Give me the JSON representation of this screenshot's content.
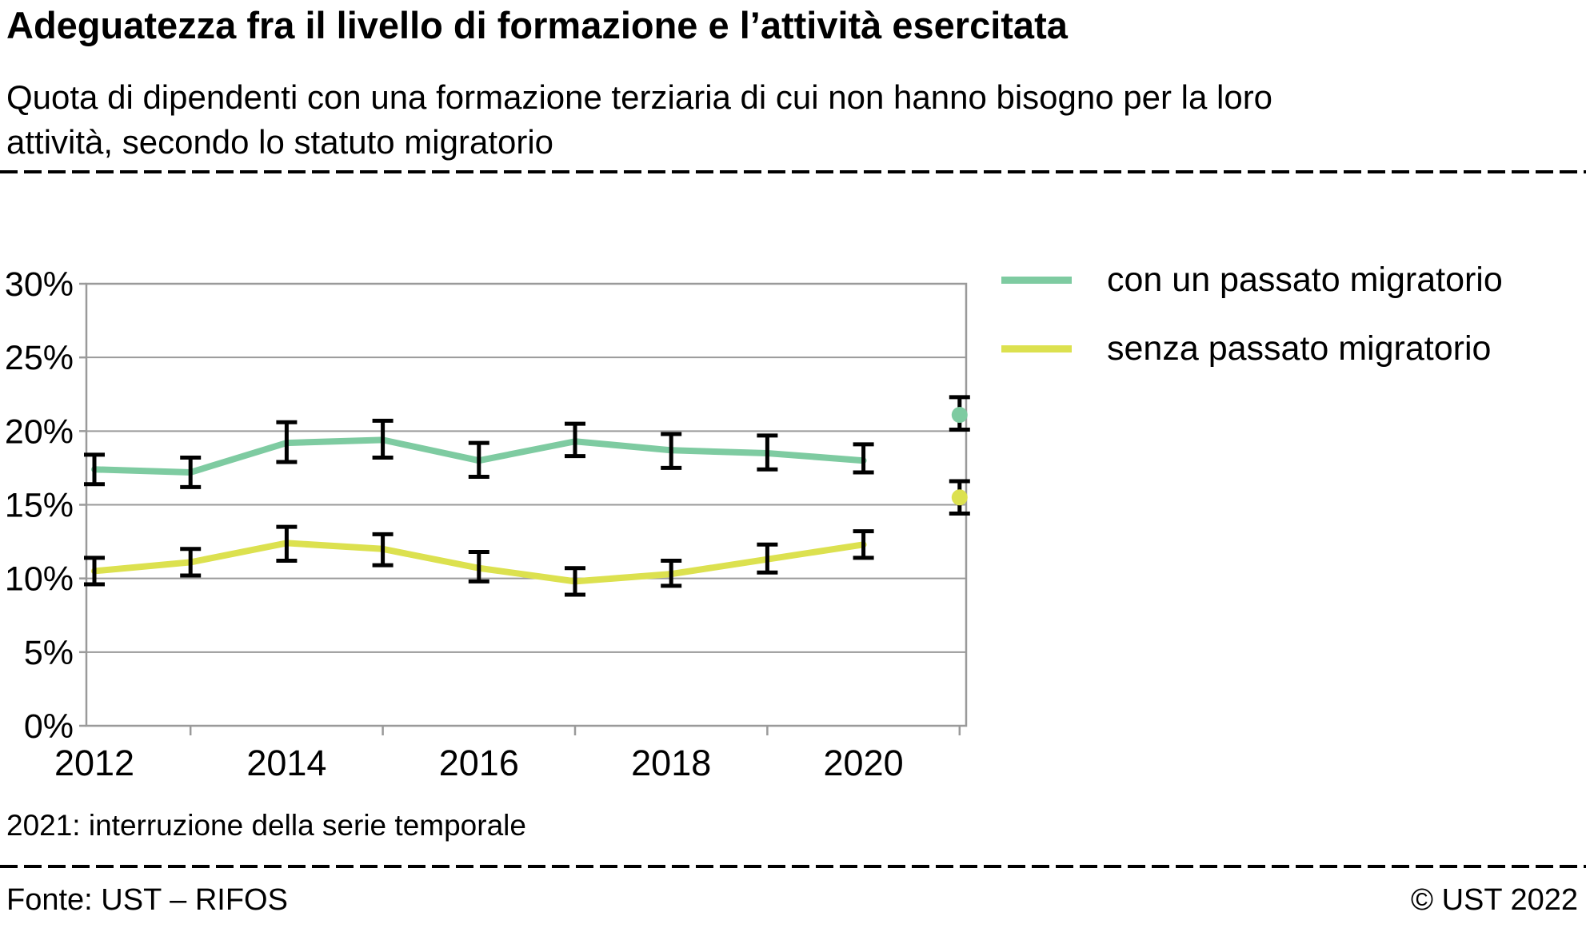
{
  "header": {
    "title": "Adeguatezza fra il livello di formazione e l’attività esercitata",
    "subtitle": "Quota di dipendenti con una formazione terziaria di cui non hanno bisogno per la loro\nattività, secondo lo statuto migratorio"
  },
  "chart_data": {
    "type": "line",
    "x": [
      2012,
      2013,
      2014,
      2015,
      2016,
      2017,
      2018,
      2019,
      2020
    ],
    "break_year": 2021,
    "ylim": [
      0,
      30
    ],
    "ytick_values": [
      0,
      5,
      10,
      15,
      20,
      25,
      30
    ],
    "ytick_labels": [
      "0%",
      "5%",
      "10%",
      "15%",
      "20%",
      "25%",
      "30%"
    ],
    "xtick_values": [
      2012,
      2014,
      2016,
      2018,
      2020
    ],
    "xtick_labels": [
      "2012",
      "2014",
      "2016",
      "2018",
      "2020"
    ],
    "xticks_minor": [
      2013,
      2015,
      2017,
      2019,
      2021
    ],
    "grid": "horizontal",
    "legend_position": "top-right",
    "grid_color": "#9a9a9a",
    "error_bar_color": "#000000",
    "series": [
      {
        "name": "con un passato migratorio",
        "color": "#7ECBA1",
        "values": [
          17.4,
          17.2,
          19.2,
          19.4,
          18.0,
          19.3,
          18.7,
          18.5,
          18.0
        ],
        "err_low": [
          16.4,
          16.2,
          17.9,
          18.2,
          16.9,
          18.3,
          17.5,
          17.4,
          17.2
        ],
        "err_high": [
          18.4,
          18.2,
          20.6,
          20.7,
          19.2,
          20.5,
          19.8,
          19.7,
          19.1
        ],
        "break_point": {
          "x": 2021,
          "value": 21.1,
          "err_low": 20.1,
          "err_high": 22.3
        }
      },
      {
        "name": "senza passato migratorio",
        "color": "#DCE14F",
        "values": [
          10.5,
          11.1,
          12.4,
          12.0,
          10.7,
          9.8,
          10.3,
          11.3,
          12.3
        ],
        "err_low": [
          9.6,
          10.2,
          11.2,
          10.9,
          9.8,
          8.9,
          9.5,
          10.4,
          11.4
        ],
        "err_high": [
          11.4,
          12.0,
          13.5,
          13.0,
          11.8,
          10.7,
          11.2,
          12.3,
          13.2
        ],
        "break_point": {
          "x": 2021,
          "value": 15.5,
          "err_low": 14.4,
          "err_high": 16.6
        }
      }
    ]
  },
  "footnote": "2021: interruzione della serie temporale",
  "footer": {
    "source": "Fonte: UST – RIFOS",
    "copyright": "© UST 2022"
  }
}
